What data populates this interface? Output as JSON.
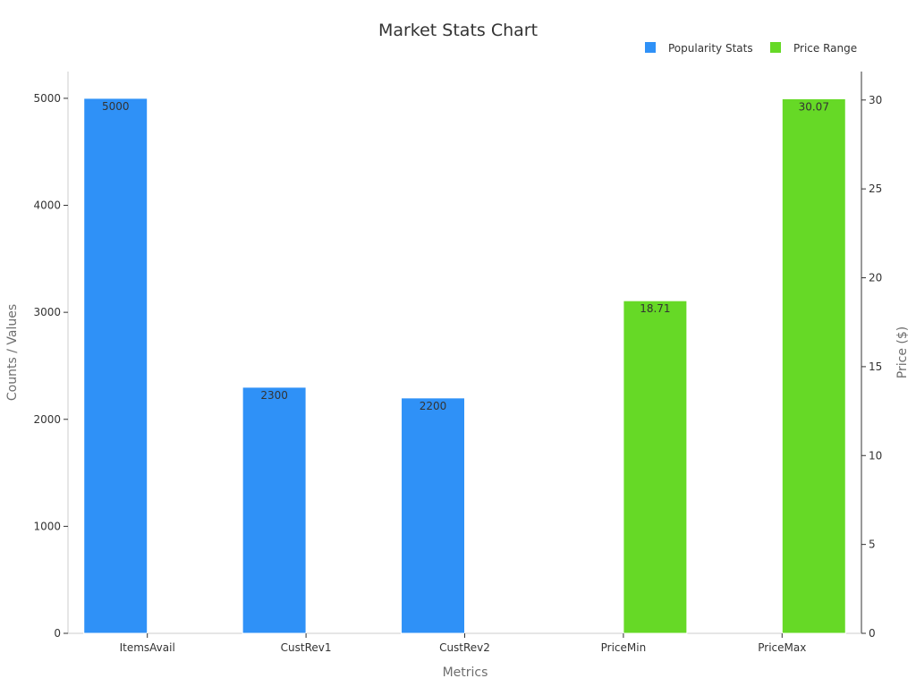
{
  "chart_data": {
    "type": "bar",
    "title": "Market Stats Chart",
    "xlabel": "Metrics",
    "ylabel": "Counts / Values",
    "y2label": "Price ($)",
    "categories": [
      "ItemsAvail",
      "CustRev1",
      "CustRev2",
      "PriceMin",
      "PriceMax"
    ],
    "series": [
      {
        "name": "Popularity Stats",
        "axis": "left",
        "color": "#2f91f7",
        "values": [
          5000,
          2300,
          2200,
          null,
          null
        ],
        "labels": [
          "5000",
          "2300",
          "2200",
          "",
          ""
        ]
      },
      {
        "name": "Price Range",
        "axis": "right",
        "color": "#66d926",
        "values": [
          null,
          null,
          null,
          18.71,
          30.07
        ],
        "labels": [
          "",
          "",
          "",
          "18.71",
          "30.07"
        ]
      }
    ],
    "ylim": [
      0,
      5250
    ],
    "y2lim": [
      0,
      31.6
    ],
    "yticks": [
      0,
      1000,
      2000,
      3000,
      4000,
      5000
    ],
    "y2ticks": [
      0,
      5,
      10,
      15,
      20,
      25,
      30
    ],
    "legend_position": "top-right",
    "grid": false
  }
}
